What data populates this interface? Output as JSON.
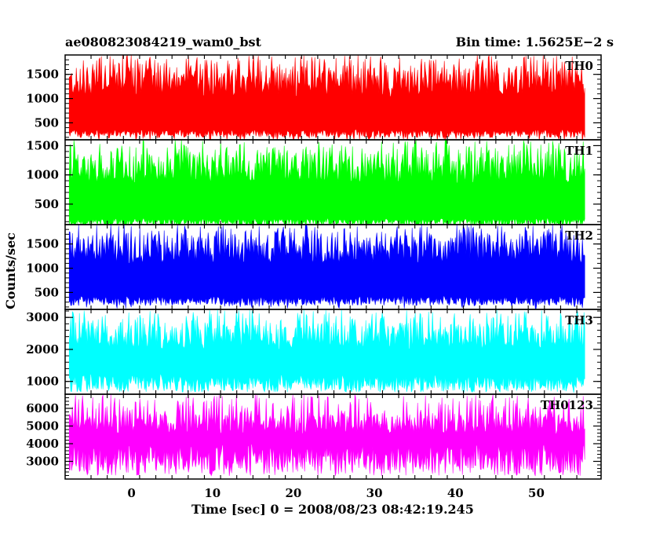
{
  "header": {
    "title": "ae080823084219_wam0_bst",
    "bin_time": "Bin time: 1.5625E−2 s"
  },
  "chart_data": {
    "type": "line",
    "xlabel": "Time [sec] 0 = 2008/08/23 08:42:19.245",
    "ylabel": "Counts/sec",
    "xlim": [
      -8.2,
      58
    ],
    "x_data_range": [
      -7.7,
      56
    ],
    "x_ticks": [
      "0",
      "10",
      "20",
      "30",
      "40",
      "50"
    ],
    "x_tick_values": [
      0,
      10,
      20,
      30,
      40,
      50
    ],
    "grid": false,
    "panels": [
      {
        "name": "TH0",
        "color": "#ff0000",
        "ylim": [
          150,
          1900
        ],
        "y_ticks": [
          500,
          1000,
          1500
        ],
        "y_tick_labels": [
          "500",
          "1000",
          "1500"
        ],
        "envelope_low": 280,
        "envelope_high": 1650,
        "spike_low": 120,
        "spike_high": 1900,
        "floor": 150
      },
      {
        "name": "TH1",
        "color": "#00ff00",
        "ylim": [
          150,
          1600
        ],
        "y_ticks": [
          500,
          1000,
          1500
        ],
        "y_tick_labels": [
          "500",
          "1000",
          "1500"
        ],
        "envelope_low": 200,
        "envelope_high": 1380,
        "spike_low": 150,
        "spike_high": 1600,
        "floor": 150
      },
      {
        "name": "TH2",
        "color": "#0000ff",
        "ylim": [
          150,
          1900
        ],
        "y_ticks": [
          500,
          1000,
          1500
        ],
        "y_tick_labels": [
          "500",
          "1000",
          "1500"
        ],
        "envelope_low": 330,
        "envelope_high": 1680,
        "spike_low": 160,
        "spike_high": 1900,
        "floor": 150
      },
      {
        "name": "TH3",
        "color": "#00ffff",
        "ylim": [
          600,
          3250
        ],
        "y_ticks": [
          1000,
          2000,
          3000
        ],
        "y_tick_labels": [
          "1000",
          "2000",
          "3000"
        ],
        "envelope_low": 950,
        "envelope_high": 2850,
        "spike_low": 640,
        "spike_high": 3250,
        "floor": 600
      },
      {
        "name": "TH0123",
        "color": "#ff00ff",
        "ylim": [
          2000,
          6800
        ],
        "y_ticks": [
          3000,
          4000,
          5000,
          6000
        ],
        "y_tick_labels": [
          "3000",
          "4000",
          "5000",
          "6000"
        ],
        "envelope_low": 3100,
        "envelope_high": 5700,
        "spike_low": 2200,
        "spike_high": 6800,
        "floor": 2000
      }
    ]
  }
}
